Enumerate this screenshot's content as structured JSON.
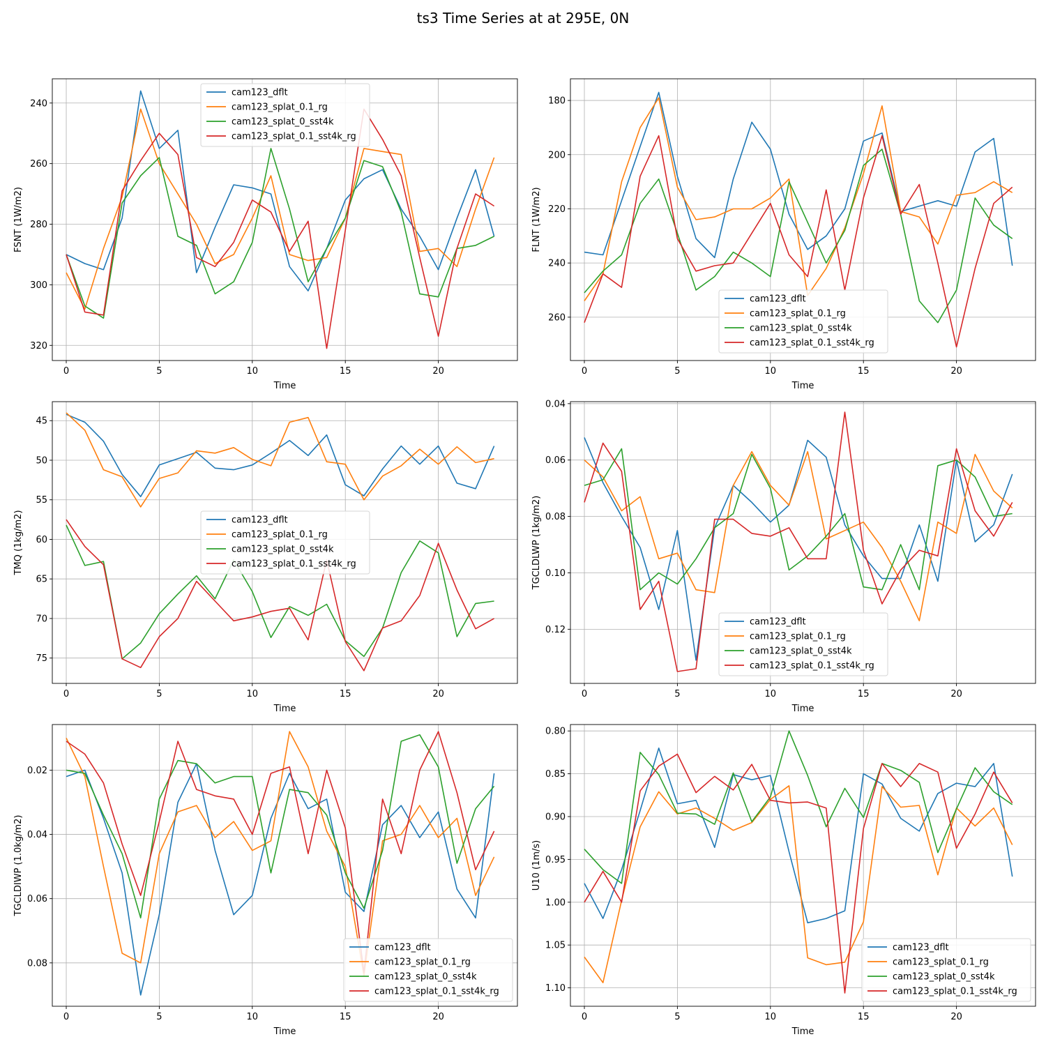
{
  "figure": {
    "title": "ts3 Time Series at at 295E, 0N"
  },
  "legend_labels": [
    "cam123_dflt",
    "cam123_splat_0.1_rg",
    "cam123_splat_0_sst4k",
    "cam123_splat_0.1_sst4k_rg"
  ],
  "colors": [
    "#1f77b4",
    "#ff7f0e",
    "#2ca02c",
    "#d62728"
  ],
  "chart_data": [
    {
      "type": "line",
      "xlabel": "Time",
      "ylabel": "FSNT (1W/m2)",
      "x": [
        0,
        1,
        2,
        3,
        4,
        5,
        6,
        7,
        8,
        9,
        10,
        11,
        12,
        13,
        14,
        15,
        16,
        17,
        18,
        19,
        20,
        21,
        22,
        23
      ],
      "xlim": [
        -0.75,
        24.25
      ],
      "xticks": [
        0,
        5,
        10,
        15,
        20
      ],
      "ylim": [
        325,
        232
      ],
      "yinverted": true,
      "yticks": [
        240,
        260,
        280,
        300,
        320
      ],
      "yticklabels": [
        "240",
        "260",
        "280",
        "300",
        "320"
      ],
      "legend_position": "top-center",
      "grid": true,
      "series": [
        {
          "name": "cam123_dflt",
          "values": [
            290,
            293,
            295,
            278,
            236,
            255,
            249,
            296,
            281,
            267,
            268,
            270,
            294,
            302,
            288,
            272,
            265,
            262,
            275,
            284,
            295,
            278,
            262,
            284
          ]
        },
        {
          "name": "cam123_splat_0.1_rg",
          "values": [
            296,
            308,
            288,
            271,
            242,
            260,
            270,
            280,
            293,
            290,
            278,
            264,
            290,
            292,
            291,
            278,
            255,
            256,
            257,
            289,
            288,
            294,
            275,
            258
          ]
        },
        {
          "name": "cam123_splat_0_sst4k",
          "values": [
            290,
            307,
            311,
            273,
            264,
            258,
            284,
            287,
            303,
            299,
            286,
            255,
            275,
            299,
            288,
            278,
            259,
            261,
            276,
            303,
            304,
            288,
            287,
            284
          ]
        },
        {
          "name": "cam123_splat_0.1_sst4k_rg",
          "values": [
            290,
            309,
            310,
            269,
            259,
            250,
            257,
            291,
            294,
            286,
            272,
            276,
            289,
            279,
            321,
            282,
            242,
            252,
            264,
            291,
            317,
            288,
            270,
            274
          ]
        }
      ]
    },
    {
      "type": "line",
      "xlabel": "Time",
      "ylabel": "FLNT (1W/m2)",
      "x": [
        0,
        1,
        2,
        3,
        4,
        5,
        6,
        7,
        8,
        9,
        10,
        11,
        12,
        13,
        14,
        15,
        16,
        17,
        18,
        19,
        20,
        21,
        22,
        23
      ],
      "xlim": [
        -0.75,
        24.25
      ],
      "xticks": [
        0,
        5,
        10,
        15,
        20
      ],
      "ylim": [
        276,
        172
      ],
      "yinverted": true,
      "yticks": [
        180,
        200,
        220,
        240,
        260
      ],
      "yticklabels": [
        "180",
        "200",
        "220",
        "240",
        "260"
      ],
      "legend_position": "bottom-center",
      "grid": true,
      "series": [
        {
          "name": "cam123_dflt",
          "values": [
            236,
            237,
            217,
            197,
            177,
            208,
            231,
            238,
            209,
            188,
            198,
            222,
            235,
            230,
            220,
            195,
            192,
            221,
            219,
            217,
            219,
            199,
            194,
            241
          ]
        },
        {
          "name": "cam123_splat_0.1_rg",
          "values": [
            254,
            244,
            210,
            190,
            179,
            212,
            224,
            223,
            220,
            220,
            216,
            209,
            252,
            242,
            227,
            207,
            182,
            221,
            223,
            233,
            215,
            214,
            210,
            214
          ]
        },
        {
          "name": "cam123_splat_0_sst4k",
          "values": [
            251,
            243,
            237,
            218,
            209,
            229,
            250,
            245,
            236,
            240,
            245,
            210,
            225,
            240,
            228,
            204,
            198,
            222,
            254,
            262,
            250,
            216,
            226,
            231
          ]
        },
        {
          "name": "cam123_splat_0.1_sst4k_rg",
          "values": [
            262,
            244,
            249,
            208,
            193,
            231,
            243,
            241,
            240,
            229,
            218,
            237,
            245,
            213,
            250,
            216,
            193,
            222,
            211,
            240,
            271,
            242,
            218,
            212
          ]
        }
      ]
    },
    {
      "type": "line",
      "xlabel": "Time",
      "ylabel": "TMQ (1kg/m2)",
      "x": [
        0,
        1,
        2,
        3,
        4,
        5,
        6,
        7,
        8,
        9,
        10,
        11,
        12,
        13,
        14,
        15,
        16,
        17,
        18,
        19,
        20,
        21,
        22,
        23
      ],
      "xlim": [
        -0.75,
        24.25
      ],
      "xticks": [
        0,
        5,
        10,
        15,
        20
      ],
      "ylim": [
        78.2,
        42.6
      ],
      "yinverted": true,
      "yticks": [
        45,
        50,
        55,
        60,
        65,
        70,
        75
      ],
      "yticklabels": [
        "45",
        "50",
        "55",
        "60",
        "65",
        "70",
        "75"
      ],
      "legend_position": "center",
      "grid": true,
      "series": [
        {
          "name": "cam123_dflt",
          "values": [
            44.2,
            45.2,
            47.6,
            51.8,
            54.6,
            50.6,
            49.8,
            49.0,
            51.0,
            51.2,
            50.6,
            49.1,
            47.5,
            49.4,
            46.8,
            53.1,
            54.5,
            51.1,
            48.2,
            50.5,
            48.2,
            52.9,
            53.6,
            48.2
          ]
        },
        {
          "name": "cam123_splat_0.1_rg",
          "values": [
            44.0,
            46.2,
            51.2,
            52.1,
            55.9,
            52.3,
            51.6,
            48.8,
            49.1,
            48.4,
            49.9,
            50.7,
            45.2,
            44.6,
            50.2,
            50.5,
            55.0,
            52.0,
            50.7,
            48.6,
            50.5,
            48.3,
            50.3,
            49.8
          ]
        },
        {
          "name": "cam123_splat_0_sst4k",
          "values": [
            58.2,
            63.3,
            62.8,
            75.1,
            73.1,
            69.4,
            66.9,
            64.6,
            67.5,
            62.6,
            66.6,
            72.4,
            68.5,
            69.6,
            68.2,
            72.8,
            74.8,
            71.2,
            64.2,
            60.2,
            61.7,
            72.3,
            68.1,
            67.8
          ]
        },
        {
          "name": "cam123_splat_0.1_sst4k_rg",
          "values": [
            57.5,
            60.9,
            63.2,
            75.1,
            76.2,
            72.3,
            70.0,
            65.3,
            67.8,
            70.3,
            69.8,
            69.1,
            68.7,
            72.7,
            62.6,
            72.9,
            76.6,
            71.2,
            70.3,
            67.1,
            60.5,
            66.4,
            71.3,
            70.0
          ]
        }
      ]
    },
    {
      "type": "line",
      "xlabel": "Time",
      "ylabel": "TGCLDLWP (1kg/m2)",
      "x": [
        0,
        1,
        2,
        3,
        4,
        5,
        6,
        7,
        8,
        9,
        10,
        11,
        12,
        13,
        14,
        15,
        16,
        17,
        18,
        19,
        20,
        21,
        22,
        23
      ],
      "xlim": [
        -0.75,
        24.25
      ],
      "xticks": [
        0,
        5,
        10,
        15,
        20
      ],
      "ylim": [
        0.1392,
        0.0393
      ],
      "yinverted": true,
      "yticks": [
        0.04,
        0.06,
        0.08,
        0.1,
        0.12
      ],
      "yticklabels": [
        "0.04",
        "0.06",
        "0.08",
        "0.10",
        "0.12"
      ],
      "legend_position": "bottom-center",
      "grid": true,
      "series": [
        {
          "name": "cam123_dflt",
          "values": [
            0.052,
            0.068,
            0.08,
            0.091,
            0.113,
            0.085,
            0.131,
            0.084,
            0.069,
            0.075,
            0.082,
            0.076,
            0.053,
            0.059,
            0.083,
            0.094,
            0.102,
            0.102,
            0.083,
            0.103,
            0.06,
            0.089,
            0.083,
            0.065
          ]
        },
        {
          "name": "cam123_splat_0.1_rg",
          "values": [
            0.06,
            0.066,
            0.078,
            0.073,
            0.095,
            0.093,
            0.106,
            0.107,
            0.069,
            0.057,
            0.069,
            0.076,
            0.057,
            0.088,
            0.085,
            0.082,
            0.091,
            0.103,
            0.117,
            0.082,
            0.086,
            0.058,
            0.071,
            0.077
          ]
        },
        {
          "name": "cam123_splat_0_sst4k",
          "values": [
            0.069,
            0.067,
            0.056,
            0.106,
            0.1,
            0.104,
            0.095,
            0.084,
            0.079,
            0.058,
            0.07,
            0.099,
            0.094,
            0.087,
            0.079,
            0.105,
            0.106,
            0.09,
            0.106,
            0.062,
            0.06,
            0.066,
            0.08,
            0.079
          ]
        },
        {
          "name": "cam123_splat_0.1_sst4k_rg",
          "values": [
            0.075,
            0.054,
            0.064,
            0.113,
            0.103,
            0.135,
            0.134,
            0.081,
            0.081,
            0.086,
            0.087,
            0.084,
            0.095,
            0.095,
            0.043,
            0.092,
            0.111,
            0.099,
            0.092,
            0.094,
            0.056,
            0.078,
            0.087,
            0.075
          ]
        }
      ]
    },
    {
      "type": "line",
      "xlabel": "Time",
      "ylabel": "TGCLDIWP (1.0kg/m2)",
      "x": [
        0,
        1,
        2,
        3,
        4,
        5,
        6,
        7,
        8,
        9,
        10,
        11,
        12,
        13,
        14,
        15,
        16,
        17,
        18,
        19,
        20,
        21,
        22,
        23
      ],
      "xlim": [
        -0.75,
        24.25
      ],
      "xticks": [
        0,
        5,
        10,
        15,
        20
      ],
      "ylim": [
        0.0935,
        0.0058
      ],
      "yinverted": true,
      "yticks": [
        0.02,
        0.04,
        0.06,
        0.08
      ],
      "yticklabels": [
        "0.02",
        "0.04",
        "0.06",
        "0.08"
      ],
      "legend_position": "bottom-right",
      "grid": true,
      "series": [
        {
          "name": "cam123_dflt",
          "values": [
            0.022,
            0.02,
            0.035,
            0.052,
            0.09,
            0.065,
            0.03,
            0.018,
            0.045,
            0.065,
            0.059,
            0.035,
            0.021,
            0.032,
            0.029,
            0.058,
            0.064,
            0.037,
            0.031,
            0.041,
            0.033,
            0.057,
            0.066,
            0.021
          ]
        },
        {
          "name": "cam123_splat_0.1_rg",
          "values": [
            0.01,
            0.022,
            0.05,
            0.077,
            0.08,
            0.046,
            0.033,
            0.031,
            0.041,
            0.036,
            0.045,
            0.042,
            0.008,
            0.019,
            0.039,
            0.05,
            0.084,
            0.042,
            0.04,
            0.031,
            0.041,
            0.035,
            0.059,
            0.047
          ]
        },
        {
          "name": "cam123_splat_0_sst4k",
          "values": [
            0.02,
            0.021,
            0.034,
            0.046,
            0.066,
            0.029,
            0.017,
            0.018,
            0.024,
            0.022,
            0.022,
            0.052,
            0.026,
            0.027,
            0.034,
            0.052,
            0.063,
            0.045,
            0.011,
            0.009,
            0.019,
            0.049,
            0.032,
            0.025
          ]
        },
        {
          "name": "cam123_splat_0.1_sst4k_rg",
          "values": [
            0.011,
            0.015,
            0.024,
            0.043,
            0.059,
            0.036,
            0.011,
            0.026,
            0.028,
            0.029,
            0.04,
            0.021,
            0.019,
            0.046,
            0.02,
            0.038,
            0.083,
            0.029,
            0.046,
            0.02,
            0.008,
            0.027,
            0.051,
            0.039
          ]
        }
      ]
    },
    {
      "type": "line",
      "xlabel": "Time",
      "ylabel": "U10 (1m/s)",
      "x": [
        0,
        1,
        2,
        3,
        4,
        5,
        6,
        7,
        8,
        9,
        10,
        11,
        12,
        13,
        14,
        15,
        16,
        17,
        18,
        19,
        20,
        21,
        22,
        23
      ],
      "xlim": [
        -0.75,
        24.25
      ],
      "xticks": [
        0,
        5,
        10,
        15,
        20
      ],
      "ylim": [
        1.1215,
        0.7925
      ],
      "yinverted": true,
      "yticks": [
        0.8,
        0.85,
        0.9,
        0.95,
        1.0,
        1.05,
        1.1
      ],
      "yticklabels": [
        "0.80",
        "0.85",
        "0.90",
        "0.95",
        "1.00",
        "1.05",
        "1.10"
      ],
      "legend_position": "bottom-right",
      "grid": true,
      "series": [
        {
          "name": "cam123_dflt",
          "values": [
            0.978,
            1.019,
            0.962,
            0.893,
            0.82,
            0.885,
            0.881,
            0.936,
            0.851,
            0.857,
            0.852,
            0.941,
            1.024,
            1.019,
            1.01,
            0.85,
            0.862,
            0.902,
            0.917,
            0.873,
            0.861,
            0.865,
            0.838,
            0.97
          ]
        },
        {
          "name": "cam123_splat_0.1_rg",
          "values": [
            1.064,
            1.094,
            0.998,
            0.912,
            0.871,
            0.897,
            0.89,
            0.902,
            0.916,
            0.907,
            0.88,
            0.864,
            1.065,
            1.073,
            1.07,
            1.023,
            0.865,
            0.889,
            0.887,
            0.968,
            0.89,
            0.911,
            0.89,
            0.933
          ]
        },
        {
          "name": "cam123_splat_0_sst4k",
          "values": [
            0.938,
            0.962,
            0.978,
            0.825,
            0.851,
            0.896,
            0.897,
            0.909,
            0.849,
            0.906,
            0.877,
            0.8,
            0.852,
            0.912,
            0.867,
            0.901,
            0.838,
            0.846,
            0.86,
            0.942,
            0.891,
            0.843,
            0.871,
            0.886
          ]
        },
        {
          "name": "cam123_splat_0.1_sst4k_rg",
          "values": [
            1.0,
            0.964,
            1.0,
            0.87,
            0.841,
            0.827,
            0.872,
            0.853,
            0.869,
            0.839,
            0.881,
            0.884,
            0.883,
            0.89,
            1.106,
            0.914,
            0.838,
            0.865,
            0.838,
            0.848,
            0.937,
            0.897,
            0.848,
            0.884
          ]
        }
      ]
    }
  ]
}
